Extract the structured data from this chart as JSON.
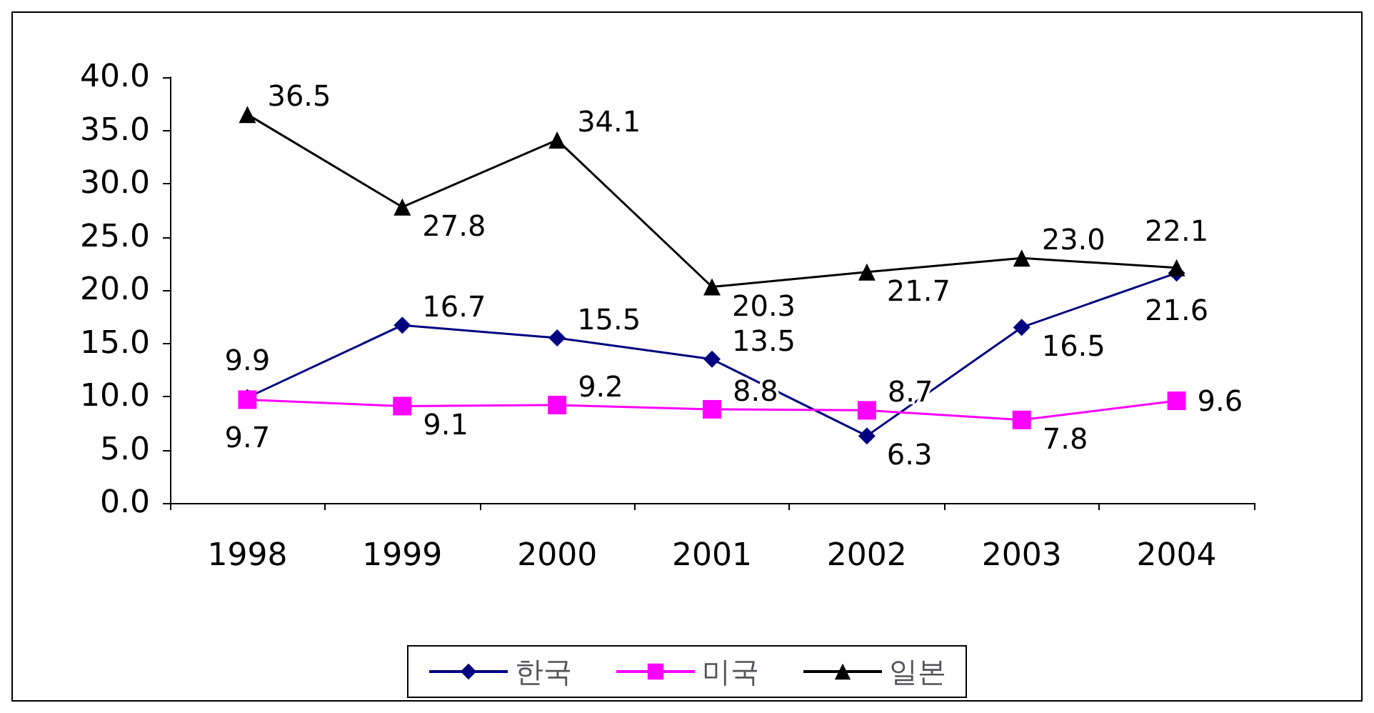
{
  "chart_data": {
    "type": "line",
    "categories": [
      "1998",
      "1999",
      "2000",
      "2001",
      "2002",
      "2003",
      "2004"
    ],
    "series": [
      {
        "name": "한국",
        "color": "#000080",
        "marker": "diamond",
        "values": [
          9.9,
          16.7,
          15.5,
          13.5,
          6.3,
          16.5,
          21.6
        ],
        "value_labels": [
          "9.9",
          "16.7",
          "15.5",
          "13.5",
          "6.3",
          "16.5",
          "21.6"
        ]
      },
      {
        "name": "미국",
        "color": "#ff00ff",
        "marker": "square",
        "values": [
          9.7,
          9.1,
          9.2,
          8.8,
          8.7,
          7.8,
          9.6
        ],
        "value_labels": [
          "9.7",
          "9.1",
          "9.2",
          "8.8",
          "8.7",
          "7.8",
          "9.6"
        ]
      },
      {
        "name": "일본",
        "color": "#000000",
        "marker": "triangle",
        "values": [
          36.5,
          27.8,
          34.1,
          20.3,
          21.7,
          23.0,
          22.1
        ],
        "value_labels": [
          "36.5",
          "27.8",
          "34.1",
          "20.3",
          "21.7",
          "23.0",
          "22.1"
        ]
      }
    ],
    "ylim": [
      0,
      40
    ],
    "yticks": [
      {
        "value": 0,
        "label": "0.0"
      },
      {
        "value": 5,
        "label": "5.0"
      },
      {
        "value": 10,
        "label": "10.0"
      },
      {
        "value": 15,
        "label": "15.0"
      },
      {
        "value": 20,
        "label": "20.0"
      },
      {
        "value": 25,
        "label": "25.0"
      },
      {
        "value": 30,
        "label": "30.0"
      },
      {
        "value": 35,
        "label": "35.0"
      },
      {
        "value": 40,
        "label": "40.0"
      }
    ],
    "grid": false,
    "legend": "bottom"
  }
}
